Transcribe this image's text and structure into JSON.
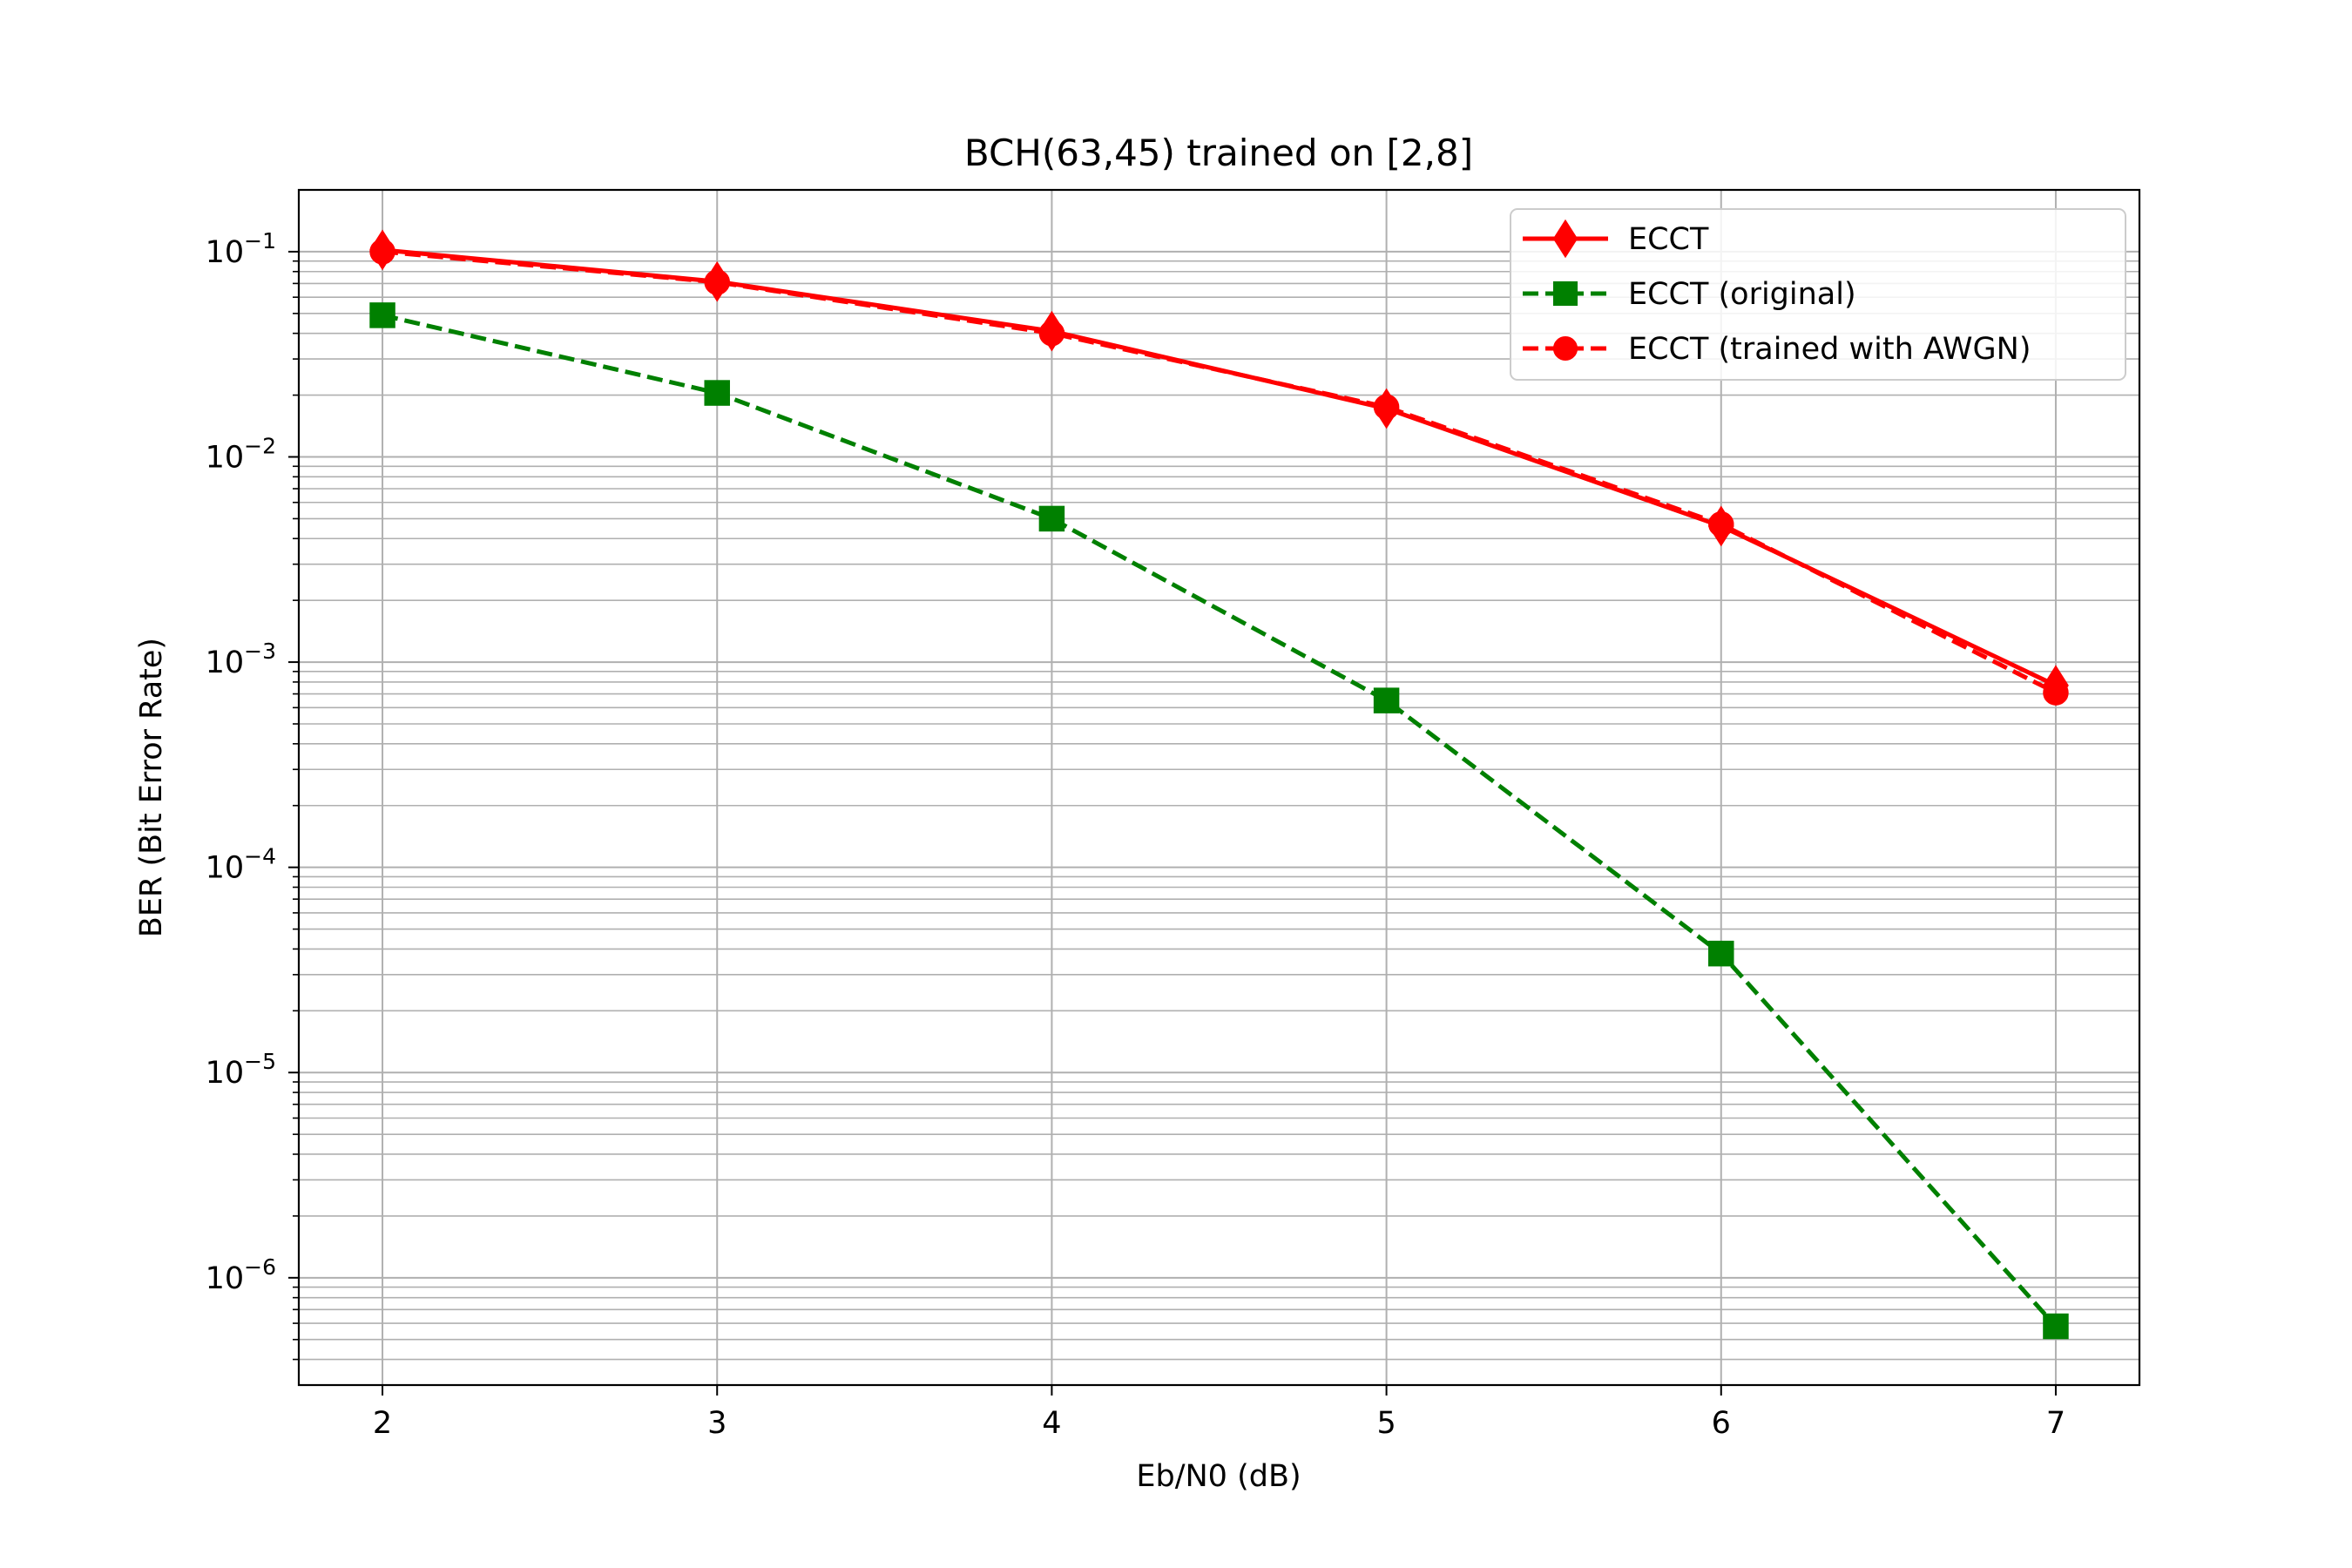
{
  "chart_data": {
    "type": "line",
    "title": "BCH(63,45) trained on [2,8]",
    "xlabel": "Eb/N0 (dB)",
    "ylabel": "BER (Bit Error Rate)",
    "x": [
      2,
      3,
      4,
      5,
      6,
      7
    ],
    "xlim": [
      1.75,
      7.25
    ],
    "ylim": [
      3e-07,
      0.2
    ],
    "yscale": "log",
    "x_ticks": [
      "2",
      "3",
      "4",
      "5",
      "6",
      "7"
    ],
    "y_ticks": [
      {
        "base": "10",
        "exp": "−1",
        "value": 0.1
      },
      {
        "base": "10",
        "exp": "−2",
        "value": 0.01
      },
      {
        "base": "10",
        "exp": "−3",
        "value": 0.001
      },
      {
        "base": "10",
        "exp": "−4",
        "value": 0.0001
      },
      {
        "base": "10",
        "exp": "−5",
        "value": 1e-05
      },
      {
        "base": "10",
        "exp": "−6",
        "value": 1e-06
      }
    ],
    "grid": "major and minor",
    "legend_position": "top-right",
    "series": [
      {
        "name": "ECCT",
        "color": "#ff0000",
        "line_style": "solid",
        "marker": "thin-diamond",
        "values": [
          0.102,
          0.0715,
          0.041,
          0.0172,
          0.0046,
          0.00077
        ]
      },
      {
        "name": "ECCT (original)",
        "color": "#008000",
        "line_style": "dashed",
        "marker": "square",
        "values": [
          0.049,
          0.0205,
          0.005,
          0.00065,
          3.8e-05,
          5.8e-07
        ]
      },
      {
        "name": "ECCT (trained with AWGN)",
        "color": "#ff0000",
        "line_style": "dashed",
        "marker": "circle",
        "values": [
          0.1,
          0.071,
          0.04,
          0.0175,
          0.0047,
          0.00071
        ]
      }
    ]
  }
}
